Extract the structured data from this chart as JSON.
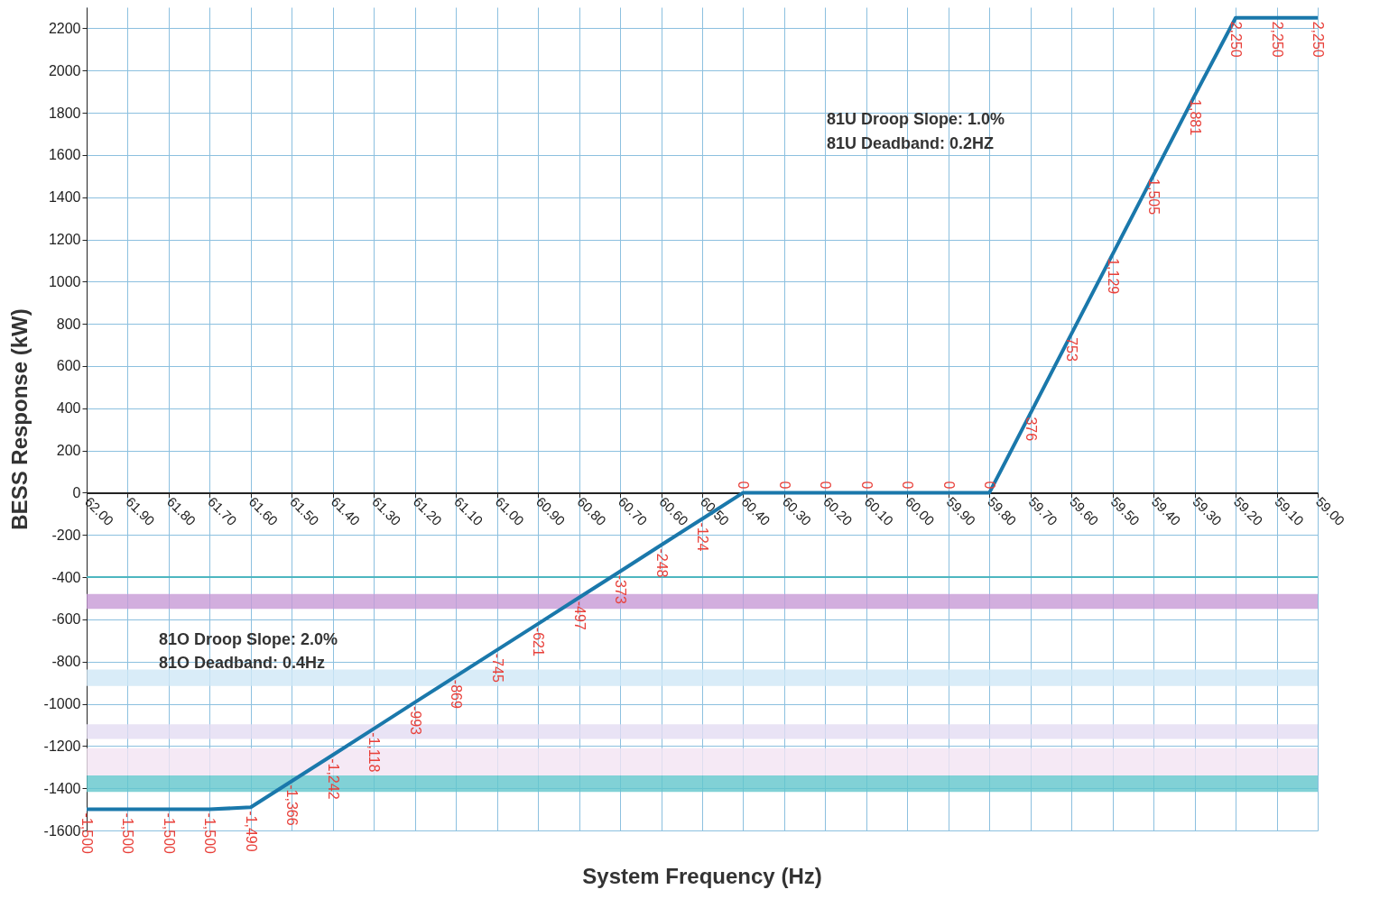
{
  "chart_data": {
    "type": "line",
    "xlabel": "System Frequency (Hz)",
    "ylabel": "BESS Response (kW)",
    "categories": [
      "62.00",
      "61.90",
      "61.80",
      "61.70",
      "61.60",
      "61.50",
      "61.40",
      "61.30",
      "61.20",
      "61.10",
      "61.00",
      "60.90",
      "60.80",
      "60.70",
      "60.60",
      "60.50",
      "60.40",
      "60.30",
      "60.20",
      "60.10",
      "60.00",
      "59.90",
      "59.80",
      "59.70",
      "59.60",
      "59.50",
      "59.40",
      "59.30",
      "59.20",
      "59.10",
      "59.00"
    ],
    "series": [
      {
        "color": "#1a78ab",
        "values": [
          -1500,
          -1500,
          -1500,
          -1500,
          -1490,
          -1366,
          -1242,
          -1118,
          -993,
          -869,
          -745,
          -621,
          -497,
          -373,
          -248,
          -124,
          0,
          0,
          0,
          0,
          0,
          0,
          0,
          376,
          753,
          1129,
          1505,
          1881,
          2250,
          2250,
          2250
        ],
        "value_labels": [
          "-1,500",
          "-1,500",
          "-1,500",
          "-1,500",
          "-1,490",
          "-1,366",
          "-1,242",
          "-1,118",
          "-993",
          "-869",
          "-745",
          "-621",
          "-497",
          "-373",
          "-248",
          "-124",
          "0",
          "0",
          "0",
          "0",
          "0",
          "0",
          "0",
          "376",
          "753",
          "1,129",
          "1,505",
          "1,881",
          "2,250",
          "2,250",
          "2,250"
        ]
      }
    ],
    "ylim": [
      -1600,
      2300
    ],
    "yticks": [
      -1600,
      -1400,
      -1200,
      -1000,
      -800,
      -600,
      -400,
      -200,
      0,
      200,
      400,
      600,
      800,
      1000,
      1200,
      1400,
      1600,
      1800,
      2000,
      2200
    ],
    "grid": true,
    "marker": "none",
    "line_style": "solid",
    "ref_lines": [
      {
        "axis": "y",
        "value": -400,
        "color": "#4db6c0"
      }
    ],
    "bands": [
      {
        "axis": "y",
        "from": -550,
        "to": -480,
        "color": "#c79ad6"
      },
      {
        "axis": "y",
        "from": -916,
        "to": -838,
        "color": "#cfe7f6"
      },
      {
        "axis": "y",
        "from": -1166,
        "to": -1097,
        "color": "#e4dcf2"
      },
      {
        "axis": "y",
        "from": -1339,
        "to": -1210,
        "color": "#f3e4f3"
      },
      {
        "axis": "y",
        "from": -1417,
        "to": -1339,
        "color": "#62c5cc"
      }
    ],
    "annotations": [
      "81U Droop Slope:  1.0%",
      "81U Deadband:  0.2HZ",
      "81O Droop Slope:  2.0%",
      "81O Deadband:  0.4Hz"
    ]
  }
}
